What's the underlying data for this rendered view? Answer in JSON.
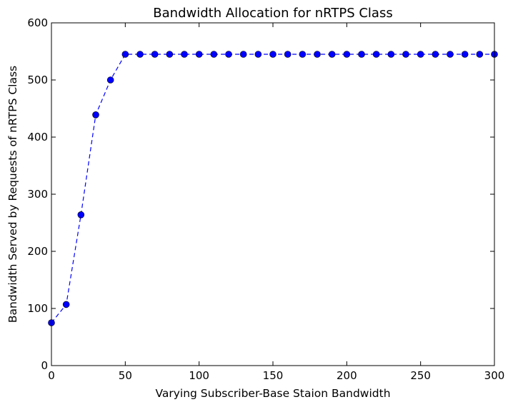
{
  "chart_data": {
    "type": "line",
    "title": "Bandwidth Allocation for nRTPS Class",
    "xlabel": "Varying Subscriber-Base Staion Bandwidth",
    "ylabel": "Bandwidth Served by Requests of nRTPS Class",
    "xlim": [
      0,
      300
    ],
    "ylim": [
      0,
      600
    ],
    "xticks": [
      0,
      50,
      100,
      150,
      200,
      250,
      300
    ],
    "yticks": [
      0,
      100,
      200,
      300,
      400,
      500,
      600
    ],
    "grid": false,
    "line_style": "dashed",
    "marker": "circle",
    "series_color": "#0000ff",
    "series": [
      {
        "x": [
          0,
          10,
          20,
          30,
          40,
          50,
          60,
          70,
          80,
          90,
          100,
          110,
          120,
          130,
          140,
          150,
          160,
          170,
          180,
          190,
          200,
          210,
          220,
          230,
          240,
          250,
          260,
          270,
          280,
          290,
          300
        ],
        "y": [
          75,
          107,
          264,
          439,
          500,
          545,
          545,
          545,
          545,
          545,
          545,
          545,
          545,
          545,
          545,
          545,
          545,
          545,
          545,
          545,
          545,
          545,
          545,
          545,
          545,
          545,
          545,
          545,
          545,
          545,
          545
        ]
      }
    ]
  }
}
